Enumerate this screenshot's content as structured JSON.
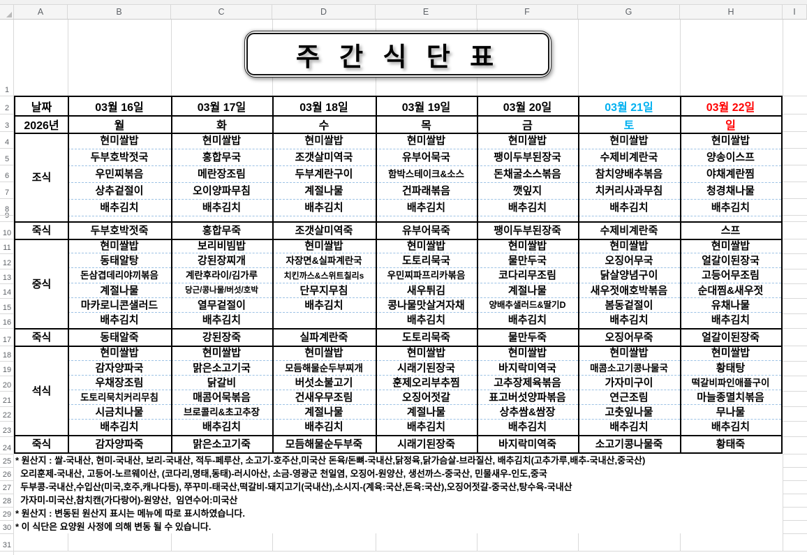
{
  "spreadsheet": {
    "column_headers": [
      "A",
      "B",
      "C",
      "D",
      "E",
      "F",
      "G",
      "H",
      "I"
    ],
    "visible_rows": 31
  },
  "title": "주 간 식 단 표",
  "calendar": {
    "date_label": "날짜",
    "year_label": "2026년",
    "days": [
      {
        "date": "03월 16일",
        "weekday": "월",
        "color": "#000000"
      },
      {
        "date": "03월 17일",
        "weekday": "화",
        "color": "#000000"
      },
      {
        "date": "03월 18일",
        "weekday": "수",
        "color": "#000000"
      },
      {
        "date": "03월 19일",
        "weekday": "목",
        "color": "#000000"
      },
      {
        "date": "03월 20일",
        "weekday": "금",
        "color": "#000000"
      },
      {
        "date": "03월 21일",
        "weekday": "토",
        "color": "#00B0F0"
      },
      {
        "date": "03월 22일",
        "weekday": "일",
        "color": "#FF0000"
      }
    ]
  },
  "sections": [
    {
      "label": "조식",
      "type": "meal",
      "menus": [
        [
          "현미쌀밥",
          "두부호박젓국",
          "우민찌볶음",
          "상추겉절이",
          "배추김치"
        ],
        [
          "현미쌀밥",
          "홍합무국",
          "메란장조림",
          "오이양파무침",
          "배추김치"
        ],
        [
          "현미쌀밥",
          "조갯살미역국",
          "두부계란구이",
          "계절나물",
          "배추김치"
        ],
        [
          "현미쌀밥",
          "유부어묵국",
          "함박스테이크&소스",
          "건파래볶음",
          "배추김치"
        ],
        [
          "현미쌀밥",
          "팽이두부된장국",
          "돈채굴소스볶음",
          "깻잎지",
          "배추김치"
        ],
        [
          "현미쌀밥",
          "수제비계란국",
          "참치양배추볶음",
          "치커리사과무침",
          "배추김치"
        ],
        [
          "현미쌀밥",
          "양송이스프",
          "야채계란찜",
          "청경채나물",
          "배추김치"
        ]
      ]
    },
    {
      "label": "죽식",
      "type": "porridge",
      "menus": [
        "두부호박젓죽",
        "홍합무죽",
        "조갯살미역죽",
        "유부어묵죽",
        "팽이두부된장죽",
        "수제비계란죽",
        "스프"
      ]
    },
    {
      "label": "중식",
      "type": "meal",
      "menus": [
        [
          "현미쌀밥",
          "동태알탕",
          "돈삼겹데리야끼볶음",
          "계절나물",
          "마카로니콘샐러드",
          "배추김치"
        ],
        [
          "보리비빔밥",
          "강된장찌개",
          "계란후라이/김가루",
          "당근/콩나물/버섯/호박",
          "열무겉절이",
          "배추김치"
        ],
        [
          "현미쌀밥",
          "자장면&실파계란국",
          "치킨까스&스위트칠리s",
          "단무지무침",
          "배추김치",
          ""
        ],
        [
          "현미쌀밥",
          "도토리묵국",
          "우민찌파프리카볶음",
          "새우튀김",
          "콩나물맛살겨자채",
          "배추김치"
        ],
        [
          "현미쌀밥",
          "물만두국",
          "코다리무조림",
          "계절나물",
          "양배추샐러드&딸기D",
          "배추김치"
        ],
        [
          "현미쌀밥",
          "오징어무국",
          "닭살양념구이",
          "새우젓애호박볶음",
          "봄동겉절이",
          "배추김치"
        ],
        [
          "현미쌀밥",
          "얼갈이된장국",
          "고등어무조림",
          "순대찜&새우젓",
          "유채나물",
          "배추김치"
        ]
      ]
    },
    {
      "label": "죽식",
      "type": "porridge",
      "menus": [
        "동태알죽",
        "강된장죽",
        "실파계란죽",
        "도토리묵죽",
        "물만두죽",
        "오징어무죽",
        "얼갈이된장죽"
      ]
    },
    {
      "label": "석식",
      "type": "meal",
      "menus": [
        [
          "현미쌀밥",
          "감자양파국",
          "우채장조림",
          "도토리묵치커리무침",
          "시금치나물",
          "배추김치"
        ],
        [
          "현미쌀밥",
          "맑은소고기국",
          "닭갈비",
          "매콤어묵볶음",
          "브로콜리&초고추장",
          "배추김치"
        ],
        [
          "현미쌀밥",
          "모듬해물순두부찌개",
          "버섯소불고기",
          "건새우무조림",
          "계절나물",
          "배추김치"
        ],
        [
          "현미쌀밥",
          "시래기된장국",
          "훈제오리부추찜",
          "오징어젓갈",
          "계절나물",
          "배추김치"
        ],
        [
          "현미쌀밥",
          "바지락미역국",
          "고추장제육볶음",
          "표고버섯양파볶음",
          "상추쌈&쌈장",
          "배추김치"
        ],
        [
          "현미쌀밥",
          "매콤소고기콩나물국",
          "가자미구이",
          "연근조림",
          "고춧잎나물",
          "배추김치"
        ],
        [
          "현미쌀밥",
          "황태탕",
          "떡갈비파인애플구이",
          "마늘종멸치볶음",
          "무나물",
          "배추김치"
        ]
      ]
    },
    {
      "label": "죽식",
      "type": "porridge",
      "menus": [
        "감자양파죽",
        "맑은소고기죽",
        "모듬해물순두부죽",
        "시래기된장죽",
        "바지락미역죽",
        "소고기콩나물죽",
        "황태죽"
      ]
    }
  ],
  "footnotes": [
    "* 원산지 : 쌀-국내산, 현미-국내산, 보리-국내산, 적두-페루산, 소고기-호주산,미국산 돈육/돈뼈-국내산,닭정육,닭가슴살-브라질산, 배추김치(고추가루,배추-국내산,중국산)",
    "  오리훈제-국내산, 고등어-노르웨이산, (코다리,명태,동태)-러시아산, 소금-영광군 천일염, 오징어-원양산, 생선까스-중국산, 민물새우-인도,중국",
    "  두부콩-국내산,수입산(미국,호주,캐나다등), 쭈꾸미-태국산,떡갈비-돼지고기(국내산),소시지-(계육:국산,돈육:국산),오징어젓갈-중국산,탕수육-국내산",
    "  가자미-미국산,참치캔(가다랑어)-원양산,  임연수어:미국산",
    "* 원산지 : 변동된 원산지 표시는 메뉴에 따로 표시하였습니다.",
    "* 이 식단은 요양원 사정에 의해 변동 될 수 있습니다."
  ],
  "colors": {
    "saturday_text": "#00B0F0",
    "sunday_text": "#FF0000",
    "dashed_separator": "#9CC2E5",
    "grid_line": "#D9D9D9"
  }
}
